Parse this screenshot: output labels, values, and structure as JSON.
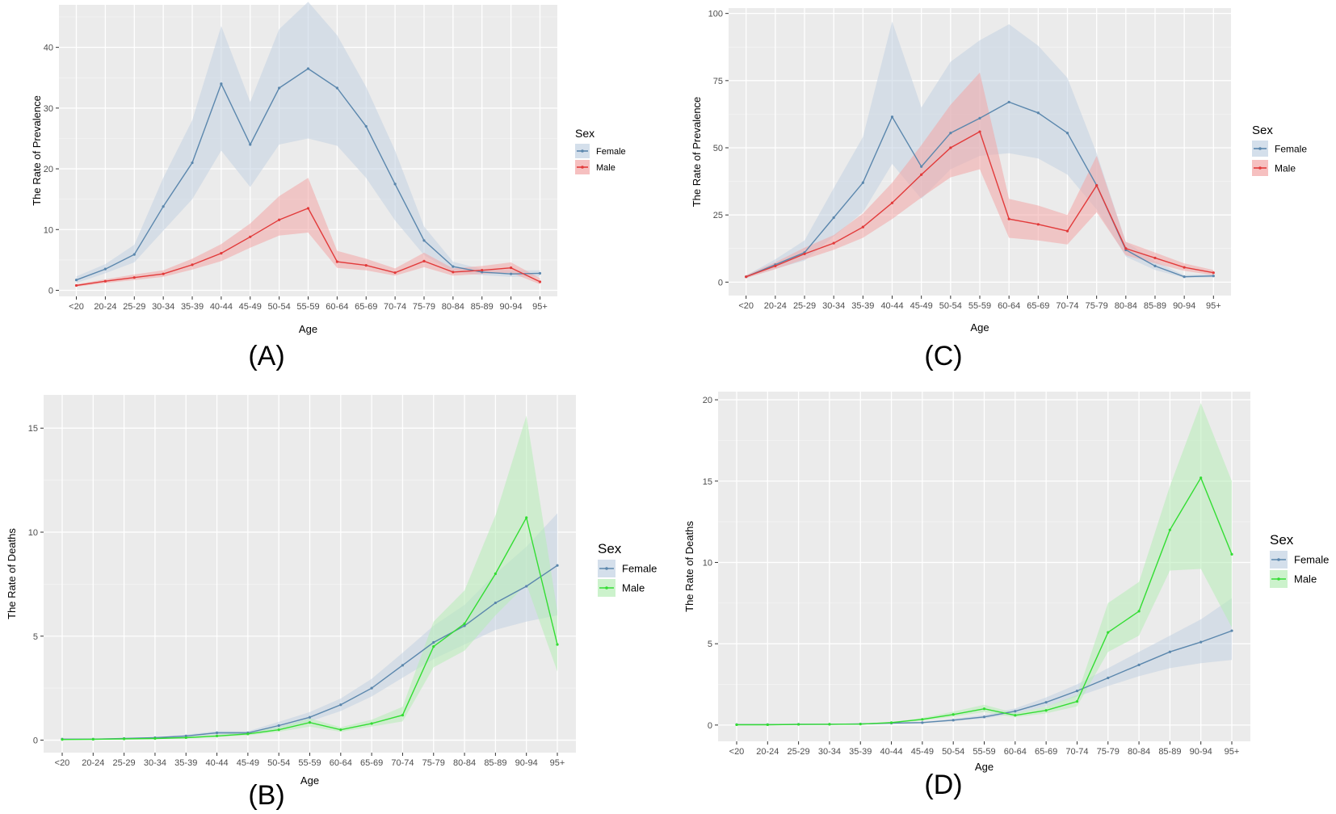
{
  "chart_data": [
    {
      "id": "A",
      "type": "line",
      "panel_label": "(A)",
      "xlabel": "Age",
      "ylabel": "The Rate of Prevalence",
      "ylim": [
        -1,
        47
      ],
      "yticks": [
        0,
        10,
        20,
        30,
        40
      ],
      "categories": [
        "<20",
        "20-24",
        "25-29",
        "30-34",
        "35-39",
        "40-44",
        "45-49",
        "50-54",
        "55-59",
        "60-64",
        "65-69",
        "70-74",
        "75-79",
        "80-84",
        "85-89",
        "90-94",
        "95+"
      ],
      "legend_title": "Sex",
      "series": [
        {
          "name": "Female",
          "color": "#5b87ad",
          "fill": "#c2d2e2",
          "values": [
            1.7,
            3.5,
            5.9,
            13.8,
            21.0,
            34.0,
            24.0,
            33.3,
            36.5,
            33.3,
            27.0,
            17.5,
            8.2,
            3.9,
            3.0,
            2.7,
            2.8
          ],
          "lower": [
            1.2,
            2.8,
            4.6,
            9.8,
            15.0,
            23.0,
            17.0,
            24.0,
            25.0,
            23.8,
            18.5,
            11.5,
            5.8,
            3.0,
            2.5,
            2.2,
            2.3
          ],
          "upper": [
            2.3,
            4.3,
            7.5,
            18.5,
            28.0,
            43.5,
            31.0,
            43.0,
            47.5,
            42.0,
            33.5,
            23.0,
            10.5,
            4.7,
            3.5,
            3.3,
            3.3
          ]
        },
        {
          "name": "Male",
          "color": "#e23a3a",
          "fill": "#f2a5a5",
          "values": [
            0.8,
            1.5,
            2.1,
            2.7,
            4.2,
            6.1,
            8.8,
            11.6,
            13.5,
            4.7,
            4.1,
            2.9,
            4.8,
            3.0,
            3.3,
            3.7,
            1.4
          ],
          "lower": [
            0.6,
            1.2,
            1.7,
            2.2,
            3.4,
            4.8,
            7.0,
            9.0,
            9.5,
            3.7,
            3.3,
            2.4,
            3.8,
            2.4,
            2.7,
            2.9,
            1.0
          ],
          "upper": [
            1.0,
            1.8,
            2.6,
            3.3,
            5.2,
            7.6,
            11.0,
            15.5,
            18.5,
            6.5,
            5.2,
            3.6,
            6.2,
            3.6,
            4.0,
            4.6,
            2.0
          ]
        }
      ]
    },
    {
      "id": "B",
      "type": "line",
      "panel_label": "(B)",
      "xlabel": "Age",
      "ylabel": "The Rate of Deaths",
      "ylim": [
        -0.6,
        16.6
      ],
      "yticks": [
        0,
        5,
        10,
        15
      ],
      "categories": [
        "<20",
        "20-24",
        "25-29",
        "30-34",
        "35-39",
        "40-44",
        "45-49",
        "50-54",
        "55-59",
        "60-64",
        "65-69",
        "70-74",
        "75-79",
        "80-84",
        "85-89",
        "90-94",
        "95+"
      ],
      "legend_title": "Sex",
      "series": [
        {
          "name": "Female",
          "color": "#5b87ad",
          "fill": "#c2d2e2",
          "values": [
            0.05,
            0.05,
            0.08,
            0.12,
            0.2,
            0.35,
            0.35,
            0.7,
            1.1,
            1.7,
            2.5,
            3.6,
            4.7,
            5.5,
            6.6,
            7.4,
            8.4
          ],
          "lower": [
            0.03,
            0.04,
            0.06,
            0.09,
            0.15,
            0.27,
            0.28,
            0.55,
            0.9,
            1.4,
            2.1,
            3.0,
            3.9,
            4.6,
            5.3,
            5.7,
            6.0
          ],
          "upper": [
            0.07,
            0.07,
            0.1,
            0.15,
            0.26,
            0.44,
            0.43,
            0.88,
            1.35,
            2.0,
            2.95,
            4.2,
            5.5,
            6.5,
            8.0,
            9.3,
            10.9
          ]
        },
        {
          "name": "Male",
          "color": "#33dd33",
          "fill": "#b6ecb6",
          "values": [
            0.03,
            0.04,
            0.06,
            0.08,
            0.12,
            0.2,
            0.3,
            0.5,
            0.85,
            0.5,
            0.8,
            1.2,
            4.5,
            5.6,
            8.0,
            10.7,
            4.6
          ],
          "lower": [
            0.02,
            0.03,
            0.04,
            0.06,
            0.09,
            0.15,
            0.23,
            0.4,
            0.65,
            0.4,
            0.65,
            0.9,
            3.5,
            4.3,
            6.0,
            7.5,
            3.3
          ],
          "upper": [
            0.05,
            0.06,
            0.08,
            0.11,
            0.16,
            0.27,
            0.38,
            0.63,
            1.05,
            0.62,
            0.98,
            1.6,
            5.7,
            7.2,
            10.8,
            15.6,
            6.2
          ]
        }
      ]
    },
    {
      "id": "C",
      "type": "line",
      "panel_label": "(C)",
      "xlabel": "Age",
      "ylabel": "The Rate of Prevalence",
      "ylim": [
        -5,
        102
      ],
      "yticks": [
        0,
        25,
        50,
        75,
        100
      ],
      "categories": [
        "<20",
        "20-24",
        "25-29",
        "30-34",
        "35-39",
        "40-44",
        "45-49",
        "50-54",
        "55-59",
        "60-64",
        "65-69",
        "70-74",
        "75-79",
        "80-84",
        "85-89",
        "90-94",
        "95+"
      ],
      "legend_title": "Sex",
      "series": [
        {
          "name": "Female",
          "color": "#5b87ad",
          "fill": "#c2d2e2",
          "values": [
            2.0,
            6.5,
            11.0,
            24.0,
            37.0,
            61.5,
            43.0,
            55.5,
            61.0,
            67.0,
            63.0,
            55.5,
            36.0,
            12.0,
            6.0,
            2.0,
            2.3
          ],
          "lower": [
            1.5,
            5.0,
            8.0,
            17.0,
            26.0,
            44.0,
            31.0,
            42.0,
            47.0,
            48.0,
            46.0,
            40.0,
            27.0,
            9.5,
            4.5,
            1.6,
            1.8
          ],
          "upper": [
            2.5,
            8.5,
            15.5,
            35.0,
            54.0,
            97.0,
            65.0,
            82.0,
            90.0,
            96.0,
            88.0,
            76.0,
            48.0,
            15.0,
            7.8,
            2.6,
            3.0
          ]
        },
        {
          "name": "Male",
          "color": "#e23a3a",
          "fill": "#f2a5a5",
          "values": [
            2.0,
            6.0,
            10.5,
            14.5,
            20.5,
            29.5,
            40.0,
            50.0,
            56.0,
            23.5,
            21.5,
            19.0,
            36.0,
            12.5,
            9.0,
            5.5,
            3.5
          ],
          "lower": [
            1.5,
            4.8,
            8.5,
            12.0,
            16.5,
            23.5,
            31.5,
            39.0,
            42.0,
            16.5,
            15.5,
            14.0,
            26.0,
            10.0,
            7.0,
            4.2,
            2.6
          ],
          "upper": [
            2.6,
            7.4,
            12.8,
            17.5,
            25.5,
            37.0,
            51.0,
            66.0,
            78.0,
            31.0,
            28.5,
            25.0,
            47.0,
            15.0,
            11.0,
            7.0,
            4.5
          ]
        }
      ]
    },
    {
      "id": "D",
      "type": "line",
      "panel_label": "(D)",
      "xlabel": "Age",
      "ylabel": "The Rate of Deaths",
      "ylim": [
        -1,
        20.5
      ],
      "yticks": [
        0,
        5,
        10,
        15,
        20
      ],
      "categories": [
        "<20",
        "20-24",
        "25-29",
        "30-34",
        "35-39",
        "40-44",
        "45-49",
        "50-54",
        "55-59",
        "60-64",
        "65-69",
        "70-74",
        "75-79",
        "80-84",
        "85-89",
        "90-94",
        "95+"
      ],
      "legend_title": "Sex",
      "series": [
        {
          "name": "Female",
          "color": "#5b87ad",
          "fill": "#c2d2e2",
          "values": [
            0.03,
            0.03,
            0.05,
            0.05,
            0.07,
            0.12,
            0.15,
            0.3,
            0.5,
            0.85,
            1.4,
            2.1,
            2.9,
            3.7,
            4.5,
            5.1,
            5.8
          ],
          "lower": [
            0.02,
            0.02,
            0.04,
            0.04,
            0.05,
            0.09,
            0.12,
            0.24,
            0.4,
            0.7,
            1.15,
            1.75,
            2.4,
            3.0,
            3.5,
            3.8,
            4.0
          ],
          "upper": [
            0.04,
            0.04,
            0.06,
            0.06,
            0.09,
            0.15,
            0.19,
            0.38,
            0.62,
            1.02,
            1.7,
            2.5,
            3.5,
            4.5,
            5.5,
            6.5,
            7.8
          ]
        },
        {
          "name": "Male",
          "color": "#33dd33",
          "fill": "#b6ecb6",
          "values": [
            0.02,
            0.02,
            0.04,
            0.05,
            0.06,
            0.15,
            0.35,
            0.65,
            1.0,
            0.6,
            0.9,
            1.45,
            5.7,
            7.0,
            12.0,
            15.2,
            10.5
          ],
          "lower": [
            0.01,
            0.01,
            0.03,
            0.04,
            0.05,
            0.12,
            0.28,
            0.52,
            0.8,
            0.48,
            0.72,
            1.15,
            4.5,
            5.5,
            9.5,
            9.6,
            6.0
          ],
          "upper": [
            0.03,
            0.03,
            0.05,
            0.06,
            0.08,
            0.19,
            0.44,
            0.82,
            1.25,
            0.74,
            1.12,
            1.85,
            7.5,
            8.8,
            14.7,
            19.8,
            15.0
          ]
        }
      ]
    }
  ]
}
